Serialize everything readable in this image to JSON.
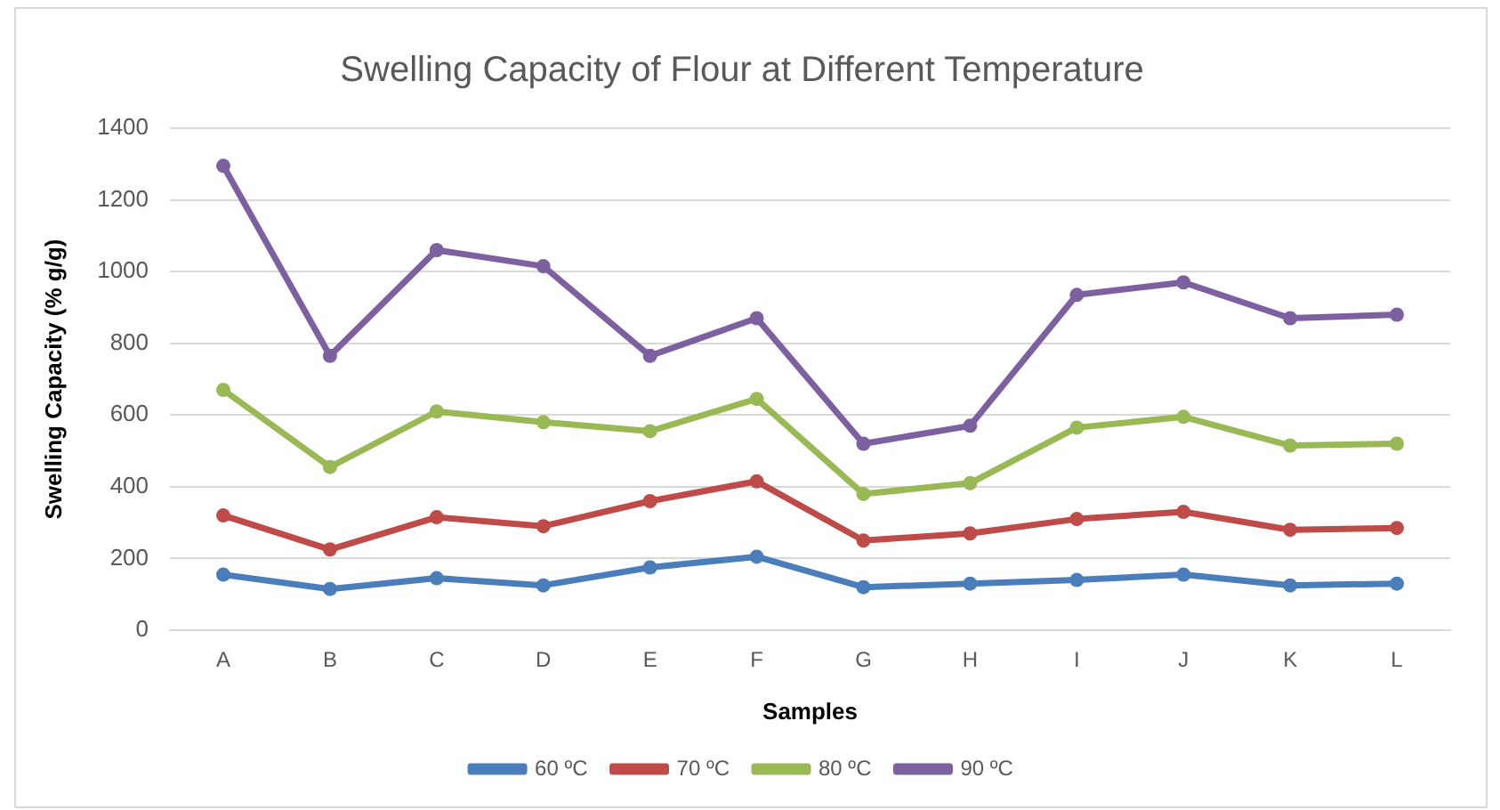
{
  "chart_data": {
    "type": "line",
    "title": "Swelling Capacity of Flour at Different Temperature",
    "xlabel": "Samples",
    "ylabel": "Swelling Capacity (% g/g)",
    "categories": [
      "A",
      "B",
      "C",
      "D",
      "E",
      "F",
      "G",
      "H",
      "I",
      "J",
      "K",
      "L"
    ],
    "series": [
      {
        "name": "60 ºC",
        "color": "#4a7ebb",
        "values": [
          155,
          115,
          145,
          125,
          175,
          205,
          120,
          130,
          140,
          155,
          125,
          130
        ]
      },
      {
        "name": "70 ºC",
        "color": "#be4b48",
        "values": [
          320,
          225,
          315,
          290,
          360,
          415,
          250,
          270,
          310,
          330,
          280,
          285
        ]
      },
      {
        "name": "80 ºC",
        "color": "#98b954",
        "values": [
          670,
          455,
          610,
          580,
          555,
          645,
          380,
          410,
          565,
          595,
          515,
          520
        ]
      },
      {
        "name": "90 ºC",
        "color": "#7d60a0",
        "values": [
          1295,
          765,
          1060,
          1015,
          765,
          870,
          520,
          570,
          935,
          970,
          870,
          880
        ]
      }
    ],
    "ylim": [
      0,
      1400
    ],
    "yticks": [
      0,
      200,
      400,
      600,
      800,
      1000,
      1200,
      1400
    ],
    "grid": "y",
    "legend": "bottom",
    "marker": "circle",
    "line_style": "solid"
  }
}
